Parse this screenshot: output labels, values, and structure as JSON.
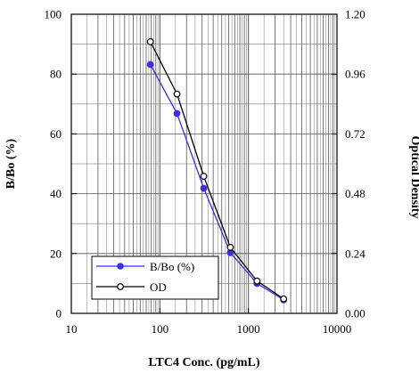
{
  "chart_data": {
    "type": "line",
    "xlabel": "LTC4 Conc. (pg/mL)",
    "ylabel": "B/Bo (%)",
    "y2label": "Optical Density",
    "x_scale": "log",
    "xlim": [
      10,
      10000
    ],
    "ylim": [
      0,
      100
    ],
    "y2lim": [
      0,
      1.2
    ],
    "grid": true,
    "legend_position": "bottom-left",
    "x_ticks": [
      "10",
      "100",
      "1000",
      "10000"
    ],
    "y_ticks": [
      "0",
      "20",
      "40",
      "60",
      "80",
      "100"
    ],
    "y2_ticks": [
      "0.00",
      "0.24",
      "0.48",
      "0.72",
      "0.96",
      "1.20"
    ],
    "series": [
      {
        "name": "B/Bo (%)",
        "axis": "left",
        "color": "#3a2fd8",
        "marker": "filled-circle",
        "x": [
          78.1,
          156,
          313,
          625,
          1250,
          2500
        ],
        "y": [
          83.2,
          66.8,
          41.8,
          20.3,
          10.0,
          4.5
        ]
      },
      {
        "name": "OD",
        "axis": "right",
        "color": "#000000",
        "marker": "open-circle",
        "x": [
          78.1,
          156,
          313,
          625,
          1250,
          2500
        ],
        "y": [
          1.09,
          0.88,
          0.55,
          0.265,
          0.13,
          0.058
        ]
      }
    ]
  }
}
